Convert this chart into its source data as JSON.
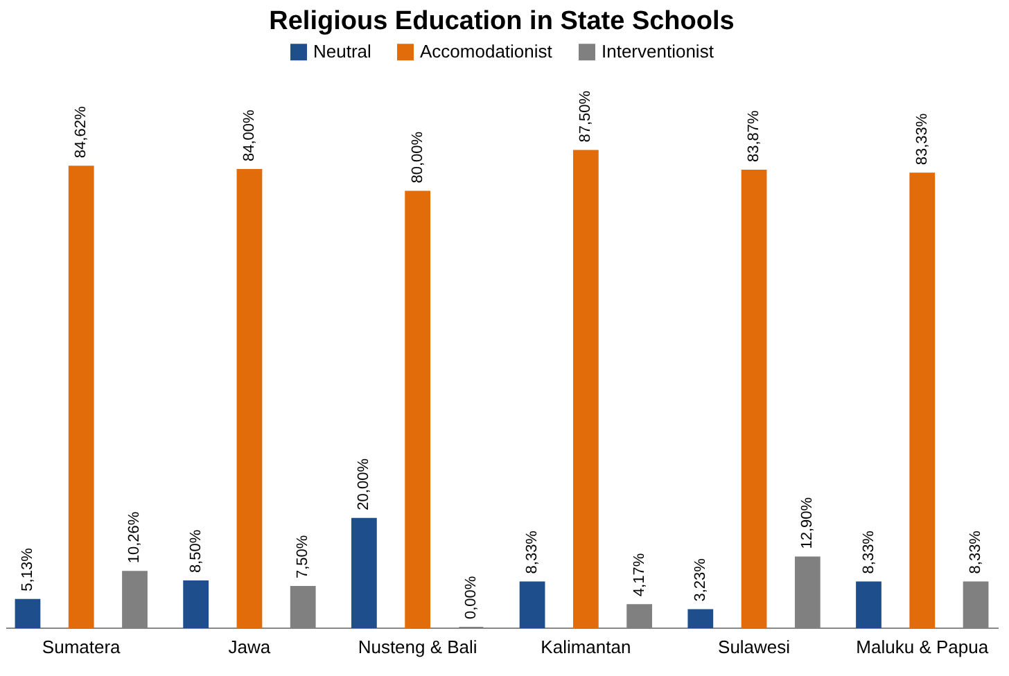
{
  "chart_data": {
    "type": "bar",
    "title": "Religious Education in State Schools",
    "categories": [
      "Sumatera",
      "Jawa",
      "Nusteng & Bali",
      "Kalimantan",
      "Sulawesi",
      "Maluku & Papua"
    ],
    "series": [
      {
        "name": "Neutral",
        "color": "#1f4e8c",
        "values": [
          5.13,
          8.5,
          20,
          8.33,
          3.23,
          8.33
        ],
        "value_labels": [
          "5,13%",
          "8,50%",
          "20,00%",
          "8,33%",
          "3,23%",
          "8,33%"
        ]
      },
      {
        "name": "Accomodationist",
        "color": "#e36c0a",
        "values": [
          84.62,
          84,
          80,
          87.5,
          83.87,
          83.33
        ],
        "value_labels": [
          "84,62%",
          "84,00%",
          "80,00%",
          "87,50%",
          "83,87%",
          "83,33%"
        ]
      },
      {
        "name": "Interventionist",
        "color": "#808080",
        "values": [
          10.26,
          7.5,
          0,
          4.17,
          12.9,
          8.33
        ],
        "value_labels": [
          "10,26%",
          "7,50%",
          "0,00%",
          "4,17%",
          "12,90%",
          "8,33%"
        ]
      }
    ],
    "legend": "top"
  }
}
